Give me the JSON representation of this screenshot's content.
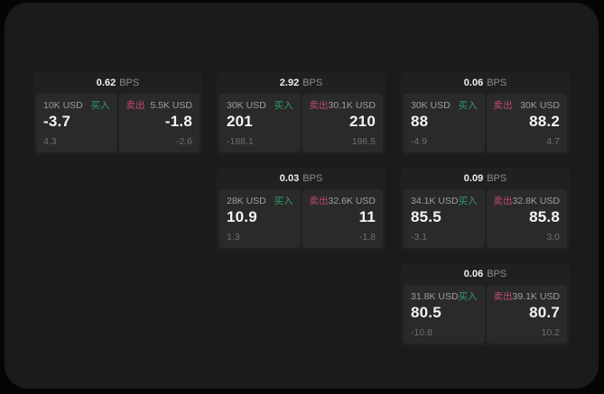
{
  "labels": {
    "bps": "BPS",
    "buy": "买入",
    "sell": "卖出"
  },
  "colors": {
    "page_bg": "#050505",
    "screen_bg": "#1b1b1c",
    "card_bg": "#202021",
    "panel_bg": "#2a2a2b",
    "buy_green": "#2f9e62",
    "sell_red": "#c24b66"
  },
  "cards": [
    {
      "bps": "0.62",
      "buy": {
        "amount": "10K USD",
        "value": "-3.7",
        "delta": "4.3"
      },
      "sell": {
        "amount": "5.5K USD",
        "value": "-1.8",
        "delta": "-2.6"
      }
    },
    {
      "bps": "2.92",
      "buy": {
        "amount": "30K USD",
        "value": "201",
        "delta": "-188.1"
      },
      "sell": {
        "amount": "30.1K USD",
        "value": "210",
        "delta": "196.5"
      }
    },
    {
      "bps": "0.06",
      "buy": {
        "amount": "30K USD",
        "value": "88",
        "delta": "-4.9"
      },
      "sell": {
        "amount": "30K USD",
        "value": "88.2",
        "delta": "4.7"
      }
    },
    {
      "bps": "0.03",
      "buy": {
        "amount": "28K USD",
        "value": "10.9",
        "delta": "1.3"
      },
      "sell": {
        "amount": "32.6K USD",
        "value": "11",
        "delta": "-1.8"
      }
    },
    {
      "bps": "0.09",
      "buy": {
        "amount": "34.1K USD",
        "value": "85.5",
        "delta": "-3.1"
      },
      "sell": {
        "amount": "32.8K USD",
        "value": "85.8",
        "delta": "3.0"
      }
    },
    {
      "bps": "0.06",
      "buy": {
        "amount": "31.8K USD",
        "value": "80.5",
        "delta": "-10.8"
      },
      "sell": {
        "amount": "39.1K USD",
        "value": "80.7",
        "delta": "10.2"
      }
    }
  ]
}
